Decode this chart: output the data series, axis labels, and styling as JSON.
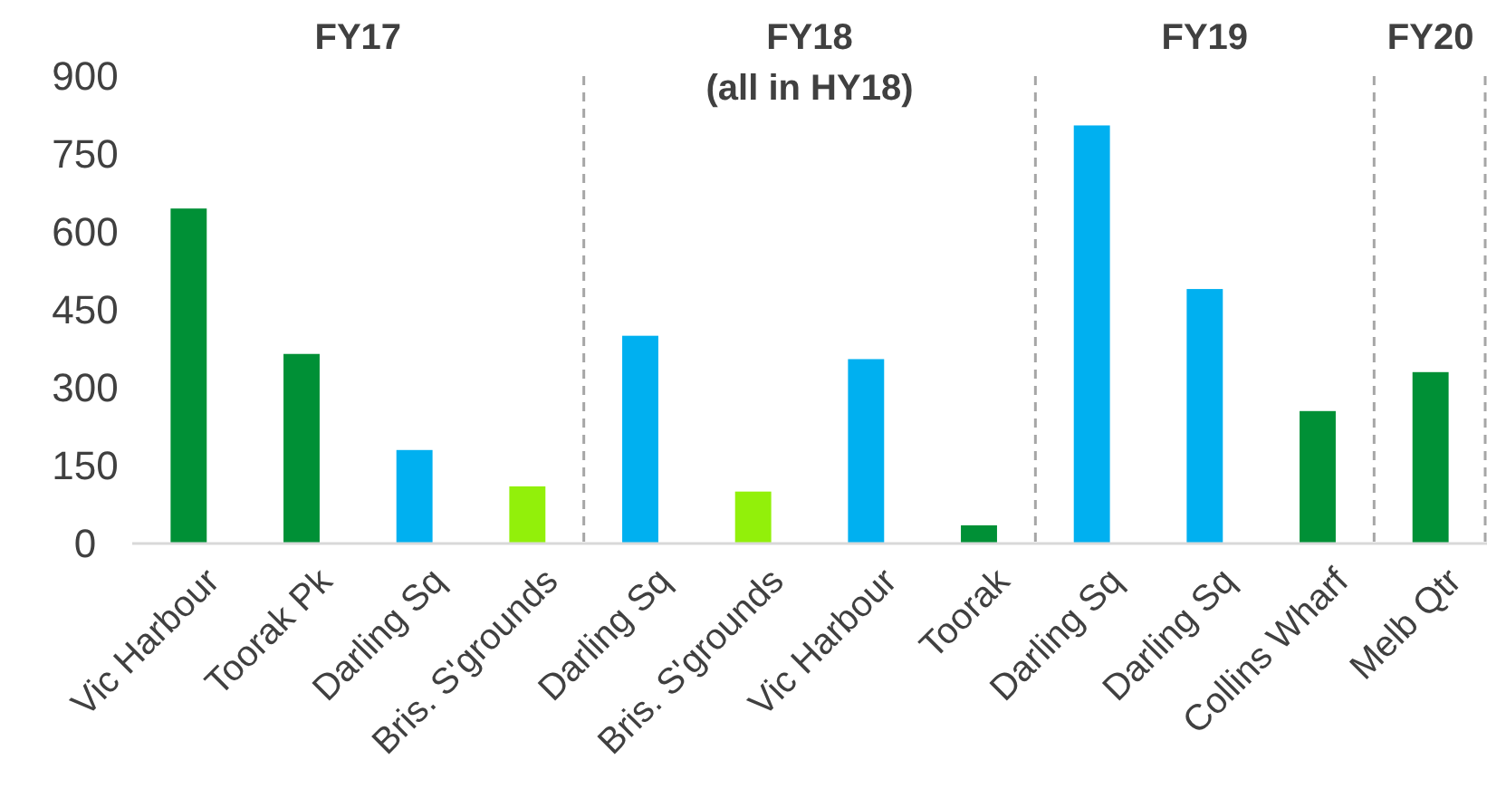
{
  "chart_data": {
    "type": "bar",
    "categories": [
      "Vic Harbour",
      "Toorak Pk",
      "Darling Sq",
      "Bris. S'grounds",
      "Darling Sq",
      "Bris. S'grounds",
      "Vic Harbour",
      "Toorak",
      "Darling Sq",
      "Darling Sq",
      "Collins Wharf",
      "Melb Qtr"
    ],
    "values": [
      645,
      365,
      180,
      110,
      400,
      100,
      355,
      35,
      805,
      490,
      255,
      330
    ],
    "colors": [
      "#009036",
      "#009036",
      "#00b0f0",
      "#92f00a",
      "#00b0f0",
      "#92f00a",
      "#00b0f0",
      "#009036",
      "#00b0f0",
      "#00b0f0",
      "#009036",
      "#009036"
    ],
    "ylim": [
      0,
      900
    ],
    "yticks": [
      0,
      150,
      300,
      450,
      600,
      750,
      900
    ],
    "grid": false,
    "annotations": [
      "FY17",
      "FY18\n(all in HY18)",
      "FY19",
      "FY20"
    ]
  }
}
